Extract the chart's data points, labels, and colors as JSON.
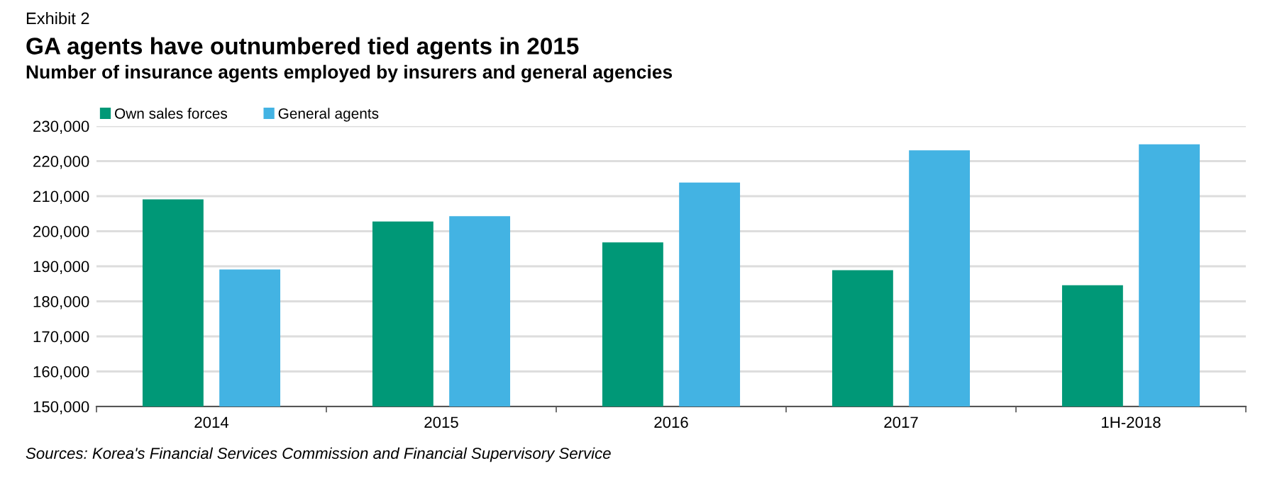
{
  "chart_data": {
    "type": "bar",
    "title": "GA agents have outnumbered tied agents in 2015",
    "subtitle": "Number of insurance agents employed by insurers and general agencies",
    "annotations": [
      "Exhibit 2",
      "Sources: Korea's Financial Services Commission and Financial Supervisory Service"
    ],
    "categories": [
      "2014",
      "2015",
      "2016",
      "2017",
      "1H-2018"
    ],
    "series": [
      {
        "name": "Own sales forces",
        "color": "#009877",
        "values": [
          209100,
          202800,
          196800,
          188900,
          184600
        ]
      },
      {
        "name": "General agents",
        "color": "#43b3e3",
        "values": [
          189100,
          204300,
          213900,
          223100,
          224800
        ]
      }
    ],
    "ylim": [
      150000,
      230000
    ],
    "yticks": [
      {
        "value": 150000,
        "label": "150,000"
      },
      {
        "value": 160000,
        "label": "160,000"
      },
      {
        "value": 170000,
        "label": "170,000"
      },
      {
        "value": 180000,
        "label": "180,000"
      },
      {
        "value": 190000,
        "label": "190,000"
      },
      {
        "value": 200000,
        "label": "200,000"
      },
      {
        "value": 210000,
        "label": "210,000"
      },
      {
        "value": 220000,
        "label": "220,000"
      },
      {
        "value": 230000,
        "label": "230,000"
      }
    ],
    "grid": "y",
    "legend": "top left"
  }
}
